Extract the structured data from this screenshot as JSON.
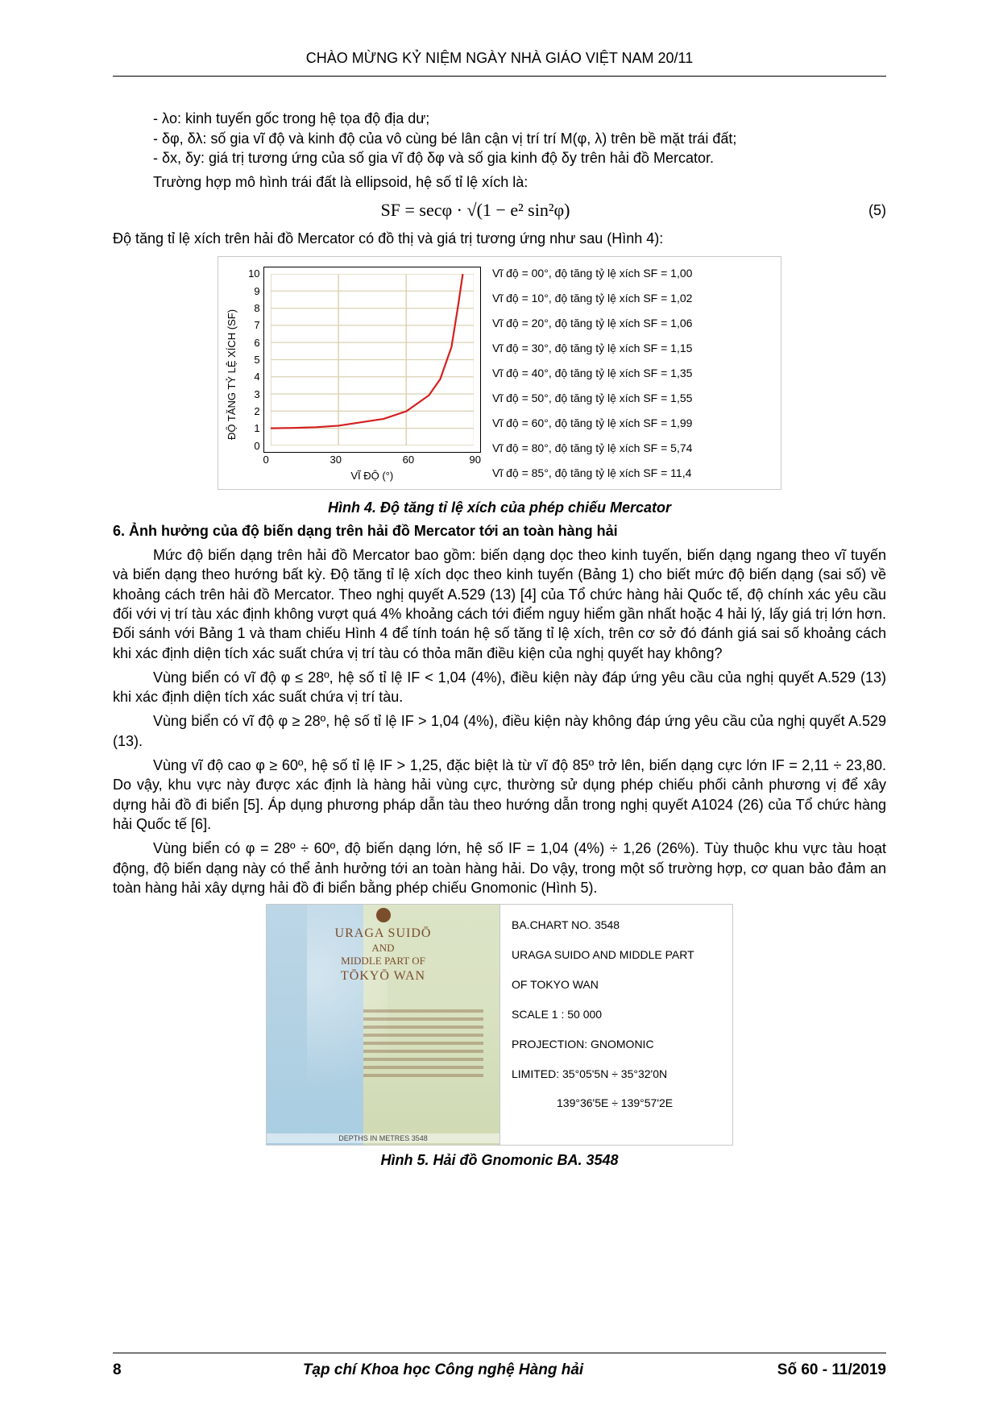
{
  "header": "CHÀO MỪNG KỶ NIỆM NGÀY NHÀ GIÁO VIỆT NAM 20/11",
  "paras": {
    "b1": "- λo: kinh tuyến gốc trong hệ tọa độ địa dư;",
    "b2": "- δφ, δλ: số gia vĩ độ và kinh độ của vô cùng bé lân cận vị trí trí M(φ, λ) trên bề mặt trái đất;",
    "b3": "- δx, δy: giá trị tương ứng của số gia vĩ độ δφ và số gia kinh độ δy trên hải đồ Mercator.",
    "b4": "Trường hợp mô hình trái đất là ellipsoid, hệ số tỉ lệ xích là:",
    "eq": "SF = secφ · √(1 − e² sin²φ)",
    "eqnum": "(5)",
    "b5": "Độ tăng tỉ lệ xích trên hải đồ Mercator có đồ thị và giá trị tương ứng như sau (Hình 4):",
    "cap4": "Hình 4. Độ tăng tỉ lệ xích của phép chiếu Mercator",
    "sec6": "6. Ảnh hưởng của độ  biến dạng trên hải đồ Mercator tới an toàn hàng hải",
    "p1": "Mức độ biến dạng trên hải đồ Mercator bao gồm: biến dạng dọc theo kinh tuyến, biến dạng ngang theo vĩ tuyến và biến dạng theo hướng bất kỳ. Độ tăng tỉ lệ xích dọc theo kinh tuyến (Bảng 1) cho biết mức độ biến dạng (sai số) về khoảng cách trên hải đồ Mercator. Theo nghị quyết A.529 (13) [4] của Tổ chức hàng hải Quốc tế, độ chính xác yêu cầu đối với vị trí tàu xác định không vượt quá 4% khoảng cách tới điểm nguy hiểm gần nhất hoặc 4 hải lý, lấy giá trị lớn hơn. Đối sánh với Bảng 1 và tham chiếu Hình 4 để tính toán hệ số tăng tỉ lệ xích, trên cơ sở đó đánh giá sai số khoảng cách khi xác định diện tích xác suất chứa vị trí tàu có thỏa mãn điều kiện của nghị quyết hay không?",
    "p2": "Vùng biển có vĩ độ φ ≤ 28º, hệ số tỉ lệ IF < 1,04 (4%), điều kiện này đáp ứng yêu cầu của nghị quyết A.529 (13) khi xác định diện tích xác suất chứa vị trí tàu.",
    "p3": "Vùng biển có vĩ độ φ ≥ 28º, hệ số tỉ lệ IF > 1,04 (4%), điều kiện này không đáp ứng yêu cầu của nghị quyết A.529 (13).",
    "p4": "Vùng vĩ độ cao φ ≥ 60º, hệ số tỉ lệ IF > 1,25, đặc biệt là từ vĩ độ 85º trở lên, biến dạng cực lớn IF = 2,11 ÷ 23,80. Do vậy, khu vực này được xác định là hàng hải vùng cực, thường sử dụng phép chiếu phối cảnh phương vị để xây dựng hải đồ đi biển [5]. Áp dụng phương pháp dẫn tàu theo hướng dẫn trong nghị quyết A1024 (26) của Tổ chức hàng hải Quốc tế [6].",
    "p5": "Vùng biển có φ = 28º ÷ 60º, độ biến dạng lớn, hệ số IF = 1,04 (4%)  ÷ 1,26 (26%). Tùy thuộc khu vực tàu hoạt động, độ biến dạng này có thể ảnh hưởng tới an toàn hàng hải. Do vậy, trong một số trường hợp, cơ quan bảo đảm an toàn hàng hải xây dựng hải đồ đi biển bằng phép chiếu Gnomonic (Hình 5).",
    "cap5": "Hình 5. Hải đồ Gnomonic BA. 3548"
  },
  "chart": {
    "type": "line",
    "ylabel": "ĐỘ TĂNG TỶ LỆ XÍCH (SF)",
    "xlabel": "VĨ ĐỘ (°)",
    "xlim": [
      0,
      90
    ],
    "ylim": [
      0,
      10
    ],
    "xtick_labels": [
      "0",
      "30",
      "60",
      "90"
    ],
    "ytick_labels": [
      "0",
      "1",
      "2",
      "3",
      "4",
      "5",
      "6",
      "7",
      "8",
      "9",
      "10"
    ],
    "grid_color": "#dcd2b4",
    "curve_color": "#d41f1f",
    "curve_width": 2.2,
    "points": [
      [
        0,
        1.0
      ],
      [
        10,
        1.02
      ],
      [
        20,
        1.06
      ],
      [
        30,
        1.15
      ],
      [
        40,
        1.35
      ],
      [
        50,
        1.55
      ],
      [
        60,
        1.99
      ],
      [
        70,
        2.92
      ],
      [
        75,
        3.86
      ],
      [
        80,
        5.74
      ],
      [
        83,
        8.2
      ],
      [
        85,
        11.4
      ]
    ],
    "legend": [
      "Vĩ độ = 00°, độ tăng tỷ lệ xích SF = 1,00",
      "Vĩ độ = 10°, độ tăng tỷ lệ xích SF = 1,02",
      "Vĩ độ = 20°, độ tăng tỷ lệ xích SF = 1,06",
      "Vĩ độ = 30°, độ tăng tỷ lệ xích SF = 1,15",
      "Vĩ độ = 40°, độ tăng tỷ lệ xích SF = 1,35",
      "Vĩ độ = 50°, độ tăng tỷ lệ xích SF = 1,55",
      "Vĩ độ = 60°, độ tăng tỷ lệ xích SF = 1,99",
      "Vĩ độ = 80°, độ tăng tỷ lệ xích SF = 5,74",
      "Vĩ độ = 85°, độ tăng tỷ lệ xích SF = 11,4"
    ]
  },
  "map": {
    "title_l1": "URAGA SUIDŌ",
    "title_l2": "AND",
    "title_l3": "MIDDLE PART OF",
    "title_l4": "TŌKYŌ WAN",
    "depths": "DEPTHS IN METRES               3548",
    "info": [
      "BA.CHART NO. 3548",
      "URAGA SUIDO AND MIDDLE PART",
      "OF TOKYO WAN",
      "SCALE  1 : 50 000",
      "PROJECTION: GNOMONIC",
      "LIMITED:   35°05'5N ÷ 35°32'0N",
      "139°36'5E ÷ 139°57'2E"
    ]
  },
  "footer": {
    "page": "8",
    "mid": "Tạp chí Khoa học Công nghệ Hàng hải",
    "right": "Số 60 - 11/2019"
  }
}
